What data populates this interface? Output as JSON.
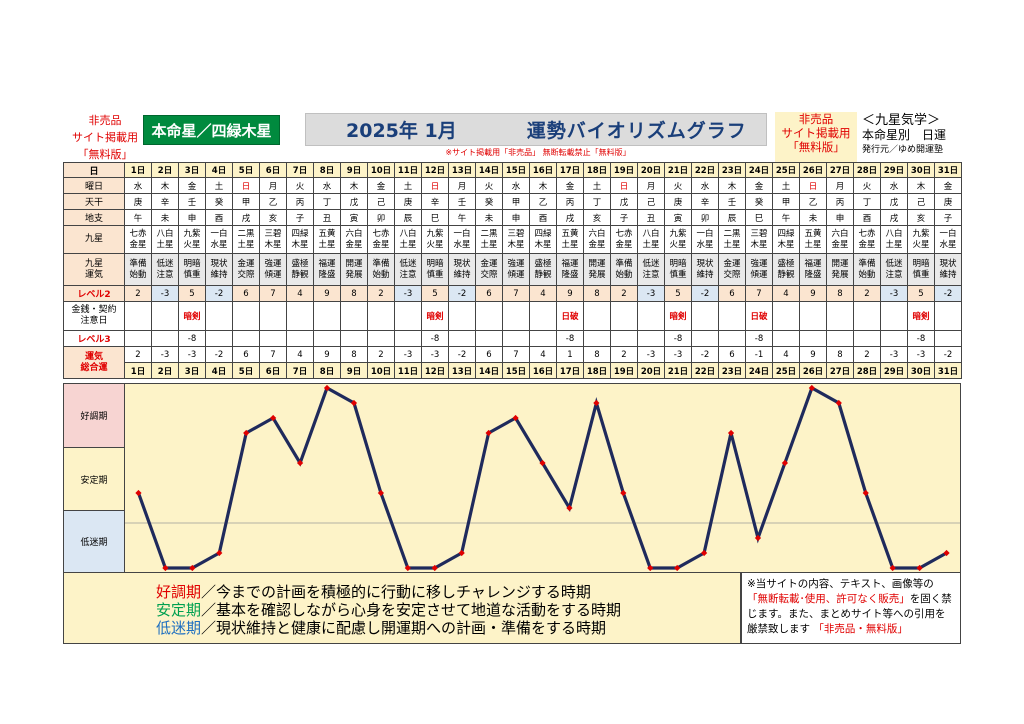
{
  "header": {
    "left_label_lines": [
      "非売品",
      "サイト掲載用",
      "「無料版」"
    ],
    "honmei_label": "本命星／四緑木星",
    "title_year_month": "2025年 1月",
    "title_name": "運勢バイオリズムグラフ",
    "warning": "※サイト掲載用「非売品」 無断転載禁止「無料版」",
    "right_label_lines": [
      "非売品",
      "サイト掲載用",
      "「無料版」"
    ],
    "brand_line1": "＜九星気学＞",
    "brand_line2": "本命星別　日運",
    "brand_line3": "発行元／ゆめ開運塾"
  },
  "table": {
    "row_labels": {
      "day": "日",
      "weekday": "曜日",
      "kan": "天干",
      "shi": "地支",
      "kyusei": "九星",
      "unki": [
        "九星",
        "運気"
      ],
      "level2": "レベル2",
      "kinsen": [
        "金銭・契約",
        "注意日"
      ],
      "level3": "レベル3",
      "total": [
        "運気",
        "総合運"
      ]
    },
    "days": [
      "1日",
      "2日",
      "3日",
      "4日",
      "5日",
      "6日",
      "7日",
      "8日",
      "9日",
      "10日",
      "11日",
      "12日",
      "13日",
      "14日",
      "15日",
      "16日",
      "17日",
      "18日",
      "19日",
      "20日",
      "21日",
      "22日",
      "23日",
      "24日",
      "25日",
      "26日",
      "27日",
      "28日",
      "29日",
      "30日",
      "31日"
    ],
    "weekday": [
      "水",
      "木",
      "金",
      "土",
      "日",
      "月",
      "火",
      "水",
      "木",
      "金",
      "土",
      "日",
      "月",
      "火",
      "水",
      "木",
      "金",
      "土",
      "日",
      "月",
      "火",
      "水",
      "木",
      "金",
      "土",
      "日",
      "月",
      "火",
      "水",
      "木",
      "金"
    ],
    "kan": [
      "庚",
      "辛",
      "壬",
      "癸",
      "甲",
      "乙",
      "丙",
      "丁",
      "戊",
      "己",
      "庚",
      "辛",
      "壬",
      "癸",
      "甲",
      "乙",
      "丙",
      "丁",
      "戊",
      "己",
      "庚",
      "辛",
      "壬",
      "癸",
      "甲",
      "乙",
      "丙",
      "丁",
      "戊",
      "己",
      "庚"
    ],
    "shi": [
      "午",
      "未",
      "申",
      "酉",
      "戌",
      "亥",
      "子",
      "丑",
      "寅",
      "卯",
      "辰",
      "巳",
      "午",
      "未",
      "申",
      "酉",
      "戌",
      "亥",
      "子",
      "丑",
      "寅",
      "卯",
      "辰",
      "巳",
      "午",
      "未",
      "申",
      "酉",
      "戌",
      "亥",
      "子"
    ],
    "kyusei": [
      [
        "七赤",
        "金星"
      ],
      [
        "八白",
        "土星"
      ],
      [
        "九紫",
        "火星"
      ],
      [
        "一白",
        "水星"
      ],
      [
        "二黒",
        "土星"
      ],
      [
        "三碧",
        "木星"
      ],
      [
        "四緑",
        "木星"
      ],
      [
        "五黄",
        "土星"
      ],
      [
        "六白",
        "金星"
      ],
      [
        "七赤",
        "金星"
      ],
      [
        "八白",
        "土星"
      ],
      [
        "九紫",
        "火星"
      ],
      [
        "一白",
        "水星"
      ],
      [
        "二黒",
        "土星"
      ],
      [
        "三碧",
        "木星"
      ],
      [
        "四緑",
        "木星"
      ],
      [
        "五黄",
        "土星"
      ],
      [
        "六白",
        "金星"
      ],
      [
        "七赤",
        "金星"
      ],
      [
        "八白",
        "土星"
      ],
      [
        "九紫",
        "火星"
      ],
      [
        "一白",
        "水星"
      ],
      [
        "二黒",
        "土星"
      ],
      [
        "三碧",
        "木星"
      ],
      [
        "四緑",
        "木星"
      ],
      [
        "五黄",
        "土星"
      ],
      [
        "六白",
        "金星"
      ],
      [
        "七赤",
        "金星"
      ],
      [
        "八白",
        "土星"
      ],
      [
        "九紫",
        "火星"
      ],
      [
        "一白",
        "水星"
      ]
    ],
    "unki": [
      [
        "準備",
        "始動"
      ],
      [
        "低迷",
        "注意"
      ],
      [
        "明暗",
        "慎重"
      ],
      [
        "現状",
        "維持"
      ],
      [
        "金運",
        "交際"
      ],
      [
        "強運",
        "傾運"
      ],
      [
        "盛極",
        "静観"
      ],
      [
        "福運",
        "隆盛"
      ],
      [
        "開運",
        "発展"
      ],
      [
        "準備",
        "始動"
      ],
      [
        "低迷",
        "注意"
      ],
      [
        "明暗",
        "慎重"
      ],
      [
        "現状",
        "維持"
      ],
      [
        "金運",
        "交際"
      ],
      [
        "強運",
        "傾運"
      ],
      [
        "盛極",
        "静観"
      ],
      [
        "福運",
        "隆盛"
      ],
      [
        "開運",
        "発展"
      ],
      [
        "準備",
        "始動"
      ],
      [
        "低迷",
        "注意"
      ],
      [
        "明暗",
        "慎重"
      ],
      [
        "現状",
        "維持"
      ],
      [
        "金運",
        "交際"
      ],
      [
        "強運",
        "傾運"
      ],
      [
        "盛極",
        "静観"
      ],
      [
        "福運",
        "隆盛"
      ],
      [
        "開運",
        "発展"
      ],
      [
        "準備",
        "始動"
      ],
      [
        "低迷",
        "注意"
      ],
      [
        "明暗",
        "慎重"
      ],
      [
        "現状",
        "維持"
      ]
    ],
    "level2": [
      "2",
      "-3",
      "5",
      "-2",
      "6",
      "7",
      "4",
      "9",
      "8",
      "2",
      "-3",
      "5",
      "-2",
      "6",
      "7",
      "4",
      "9",
      "8",
      "2",
      "-3",
      "5",
      "-2",
      "6",
      "7",
      "4",
      "9",
      "8",
      "2",
      "-3",
      "5",
      "-2"
    ],
    "kinsen": [
      "",
      "",
      "暗剣",
      "",
      "",
      "",
      "",
      "",
      "",
      "",
      "",
      "暗剣",
      "",
      "",
      "",
      "",
      "日破",
      "",
      "",
      "",
      "暗剣",
      "",
      "",
      "日破",
      "",
      "",
      "",
      "",
      "",
      "暗剣",
      ""
    ],
    "level3": [
      "",
      "",
      "-8",
      "",
      "",
      "",
      "",
      "",
      "",
      "",
      "",
      "-8",
      "",
      "",
      "",
      "",
      "-8",
      "",
      "",
      "",
      "-8",
      "",
      "",
      "-8",
      "",
      "",
      "",
      "",
      "",
      "-8",
      ""
    ],
    "total": [
      "2",
      "-3",
      "-3",
      "-2",
      "6",
      "7",
      "4",
      "9",
      "8",
      "2",
      "-3",
      "-3",
      "-2",
      "6",
      "7",
      "4",
      "1",
      "8",
      "2",
      "-3",
      "-3",
      "-2",
      "6",
      "-1",
      "4",
      "9",
      "8",
      "2",
      "-3",
      "-3",
      "-2"
    ]
  },
  "colors": {
    "line": "#1f2a5c",
    "marker": "#e00000",
    "good": "#f7d4d2",
    "stable": "#fdf3c8",
    "low": "#dbe7f3",
    "honmei": "#008a3e"
  },
  "chart_data": {
    "type": "line",
    "x": [
      1,
      2,
      3,
      4,
      5,
      6,
      7,
      8,
      9,
      10,
      11,
      12,
      13,
      14,
      15,
      16,
      17,
      18,
      19,
      20,
      21,
      22,
      23,
      24,
      25,
      26,
      27,
      28,
      29,
      30,
      31
    ],
    "series": [
      {
        "values": [
          2,
          -3,
          -3,
          -2,
          6,
          7,
          4,
          9,
          8,
          2,
          -3,
          -3,
          -2,
          6,
          7,
          4,
          1,
          8,
          2,
          -3,
          -3,
          -2,
          6,
          -1,
          4,
          9,
          8,
          2,
          -3,
          -3,
          -2
        ]
      }
    ],
    "ylim": [
      -3,
      9
    ],
    "zones": [
      "好調期",
      "安定期",
      "低迷期"
    ],
    "grid": false
  },
  "legend": {
    "good_label": "好調期",
    "good_text": "／今までの計画を積極的に行動に移しチャレンジする時期",
    "stable_label": "安定期",
    "stable_text": "／基本を確認しながら心身を安定させて地道な活動をする時期",
    "low_label": "低迷期",
    "low_text": "／現状維持と健康に配慮し開運期への計画・準備をする時期"
  },
  "note": {
    "line1": "※当サイトの内容、テキスト、画像等の",
    "line2_red": "「無断転載･使用、許可なく販売」",
    "line2_rest": "を固く禁",
    "line3": "じます。また、まとめサイト等への引用を",
    "line4": "厳禁致します",
    "line4_red": "「非売品・無料版」"
  }
}
